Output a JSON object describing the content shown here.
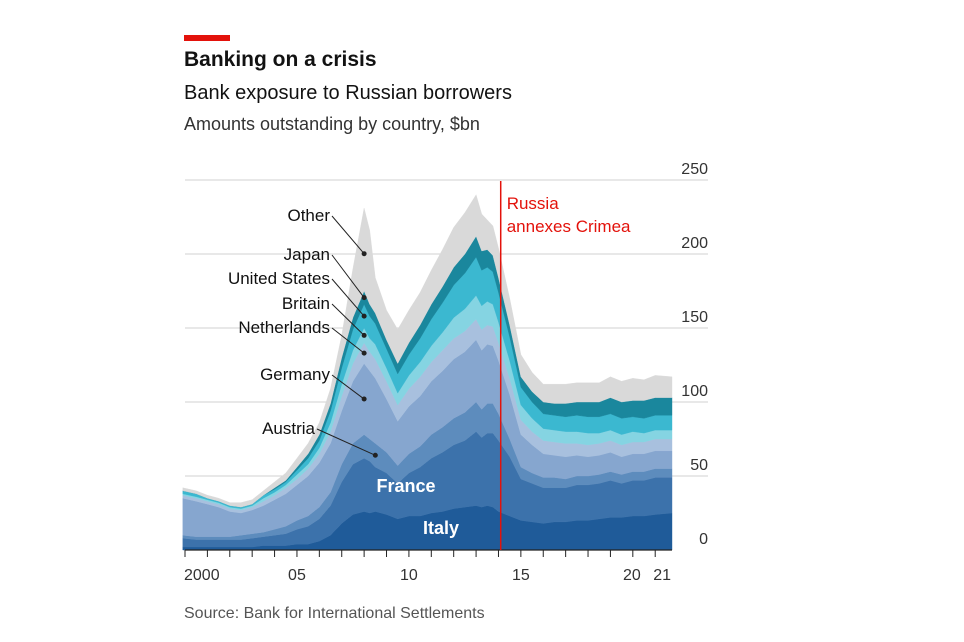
{
  "header": {
    "title": "Banking on a crisis",
    "subtitle": "Bank exposure to Russian borrowers",
    "unit": "Amounts outstanding by country, $bn"
  },
  "footer": {
    "source": "Source: Bank for International Settlements"
  },
  "chart_data": {
    "type": "area",
    "stacked": true,
    "title": "Banking on a crisis",
    "subtitle": "Bank exposure to Russian borrowers",
    "ylabel": "Amounts outstanding by country, $bn",
    "xlim": [
      2000,
      2021.75
    ],
    "ylim": [
      0,
      250
    ],
    "y_ticks": [
      0,
      50,
      100,
      150,
      200,
      250
    ],
    "x_tick_labels": [
      {
        "x": 2000,
        "label": "2000"
      },
      {
        "x": 2005,
        "label": "05"
      },
      {
        "x": 2010,
        "label": "10"
      },
      {
        "x": 2015,
        "label": "15"
      },
      {
        "x": 2020,
        "label": "20"
      },
      {
        "x": 2021,
        "label": "21"
      }
    ],
    "grid": true,
    "x": [
      1999.9,
      2000.5,
      2001.0,
      2001.5,
      2002.0,
      2002.5,
      2003.0,
      2003.5,
      2004.0,
      2004.5,
      2005.0,
      2005.5,
      2006.0,
      2006.5,
      2007.0,
      2007.5,
      2008.0,
      2008.25,
      2008.5,
      2009.0,
      2009.5,
      2010.0,
      2010.5,
      2011.0,
      2011.5,
      2012.0,
      2012.5,
      2013.0,
      2013.25,
      2013.5,
      2013.75,
      2014.0,
      2014.5,
      2015.0,
      2015.5,
      2016.0,
      2016.5,
      2017.0,
      2017.5,
      2018.0,
      2018.5,
      2019.0,
      2019.5,
      2020.0,
      2020.5,
      2021.0,
      2021.75
    ],
    "series": [
      {
        "name": "Italy",
        "color": "#1f5b99",
        "values": [
          2,
          2,
          2,
          2,
          2,
          2,
          2,
          3,
          3,
          3,
          4,
          4,
          6,
          10,
          18,
          24,
          26,
          25,
          26,
          24,
          21,
          23,
          23,
          25,
          26,
          28,
          29,
          30,
          29,
          30,
          29,
          26,
          23,
          20,
          19,
          18,
          19,
          19,
          20,
          20,
          21,
          22,
          22,
          23,
          23,
          24,
          25
        ]
      },
      {
        "name": "France",
        "color": "#3c72ab",
        "values": [
          6,
          5,
          5,
          5,
          5,
          5,
          6,
          6,
          7,
          8,
          10,
          12,
          15,
          20,
          28,
          34,
          36,
          35,
          30,
          28,
          24,
          29,
          33,
          37,
          40,
          43,
          45,
          50,
          47,
          49,
          50,
          48,
          40,
          28,
          26,
          24,
          23,
          23,
          24,
          24,
          24,
          25,
          23,
          24,
          24,
          25,
          24
        ]
      },
      {
        "name": "Austria",
        "color": "#5d8cbd",
        "values": [
          2,
          2,
          2,
          2,
          2,
          3,
          3,
          3,
          4,
          5,
          6,
          7,
          8,
          9,
          12,
          14,
          16,
          15,
          16,
          14,
          12,
          13,
          14,
          16,
          17,
          18,
          19,
          20,
          19,
          20,
          20,
          18,
          12,
          8,
          7,
          7,
          7,
          6,
          6,
          6,
          6,
          6,
          6,
          6,
          6,
          6,
          6
        ]
      },
      {
        "name": "Germany",
        "color": "#86a6cf",
        "values": [
          25,
          24,
          22,
          20,
          17,
          15,
          16,
          18,
          20,
          22,
          24,
          27,
          30,
          33,
          36,
          42,
          48,
          46,
          44,
          36,
          30,
          32,
          34,
          36,
          38,
          40,
          41,
          42,
          40,
          40,
          39,
          36,
          30,
          22,
          19,
          16,
          15,
          15,
          14,
          13,
          13,
          13,
          12,
          12,
          12,
          12,
          12
        ]
      },
      {
        "name": "Netherlands",
        "color": "#a8c0de",
        "values": [
          2,
          2,
          2,
          2,
          2,
          2,
          2,
          3,
          3,
          4,
          4,
          5,
          6,
          8,
          10,
          12,
          14,
          13,
          13,
          12,
          11,
          12,
          13,
          13,
          14,
          14,
          14,
          14,
          14,
          13,
          13,
          12,
          11,
          10,
          9,
          9,
          9,
          9,
          8,
          8,
          8,
          8,
          8,
          8,
          8,
          8,
          8
        ]
      },
      {
        "name": "Britain",
        "color": "#85d4e2",
        "values": [
          1,
          1,
          1,
          1,
          1,
          1,
          1,
          2,
          2,
          2,
          3,
          3,
          4,
          6,
          8,
          9,
          10,
          9,
          10,
          9,
          8,
          9,
          10,
          11,
          12,
          14,
          15,
          16,
          16,
          16,
          15,
          14,
          12,
          10,
          9,
          8,
          8,
          8,
          8,
          8,
          7,
          7,
          7,
          7,
          6,
          6,
          6
        ]
      },
      {
        "name": "United States",
        "color": "#3bb8d0",
        "values": [
          2,
          2,
          1,
          1,
          1,
          1,
          1,
          2,
          2,
          2,
          3,
          4,
          5,
          8,
          11,
          14,
          16,
          15,
          14,
          13,
          13,
          14,
          16,
          18,
          20,
          22,
          24,
          26,
          24,
          23,
          22,
          20,
          16,
          12,
          11,
          10,
          10,
          10,
          11,
          11,
          11,
          11,
          11,
          10,
          10,
          10,
          10
        ]
      },
      {
        "name": "Japan",
        "color": "#1a879d",
        "values": [
          0,
          0,
          0,
          0,
          0,
          0,
          0,
          0,
          1,
          1,
          2,
          3,
          4,
          5,
          7,
          8,
          9,
          8,
          7,
          6,
          7,
          8,
          9,
          10,
          11,
          12,
          13,
          14,
          13,
          12,
          11,
          10,
          8,
          7,
          7,
          8,
          8,
          9,
          9,
          10,
          10,
          11,
          11,
          11,
          12,
          12,
          12
        ]
      },
      {
        "name": "Other",
        "color": "#d9d9d9",
        "values": [
          2,
          2,
          2,
          2,
          2,
          3,
          3,
          3,
          4,
          5,
          6,
          7,
          8,
          10,
          15,
          33,
          56,
          50,
          24,
          20,
          23,
          22,
          22,
          23,
          25,
          27,
          28,
          28,
          25,
          20,
          20,
          20,
          18,
          15,
          13,
          12,
          13,
          13,
          13,
          13,
          13,
          14,
          14,
          15,
          14,
          15,
          14
        ]
      }
    ],
    "series_labels": [
      "Other",
      "Japan",
      "United States",
      "Britain",
      "Netherlands",
      "Germany",
      "Austria"
    ],
    "inner_labels": [
      "France",
      "Italy"
    ],
    "annotation": {
      "x": 2014.1,
      "text_lines": [
        "Russia",
        "annexes Crimea"
      ],
      "color": "#e3120b"
    }
  }
}
